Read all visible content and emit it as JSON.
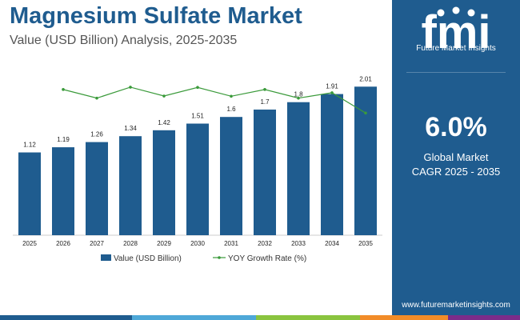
{
  "header": {
    "title": "Magnesium Sulfate Market",
    "subtitle": "Value (USD Billion) Analysis, 2025-2035"
  },
  "side_panel": {
    "logo_text": "fmi",
    "logo_subtitle": "Future Market Insights",
    "cagr_value": "6.0%",
    "cagr_label_line1": "Global Market",
    "cagr_label_line2": "CAGR 2025 - 2035",
    "website": "www.futuremarketinsights.com",
    "panel_color": "#1f5c8f"
  },
  "colors": {
    "bar": "#1f5c8f",
    "line": "#3a9a3a",
    "footer": [
      "#1f5c8f",
      "#4ea8d8",
      "#8ac43f",
      "#f28c28",
      "#7b2c8a"
    ]
  },
  "chart_data": {
    "type": "bar",
    "categories": [
      "2025",
      "2026",
      "2027",
      "2028",
      "2029",
      "2030",
      "2031",
      "2032",
      "2033",
      "2034",
      "2035"
    ],
    "series": [
      {
        "name": "Value (USD Billion)",
        "type": "bar",
        "values": [
          1.12,
          1.19,
          1.26,
          1.34,
          1.42,
          1.51,
          1.6,
          1.7,
          1.8,
          1.91,
          2.01
        ],
        "labels": [
          "1.12",
          "1.19",
          "1.26",
          "1.34",
          "1.42",
          "1.51",
          "1.6",
          "1.7",
          "1.8",
          "1.91",
          "2.01"
        ]
      },
      {
        "name": "YOY Growth Rate (%)",
        "type": "line",
        "x": [
          "2026",
          "2027",
          "2028",
          "2029",
          "2030",
          "2031",
          "2032",
          "2033",
          "2034",
          "2035"
        ],
        "values": [
          6.25,
          5.88,
          6.35,
          5.97,
          6.34,
          5.96,
          6.25,
          5.88,
          6.11,
          5.24
        ]
      }
    ],
    "ylim": [
      0,
      2.1
    ],
    "y2lim": [
      0,
      7
    ],
    "grid": false,
    "legend_position": "bottom"
  }
}
